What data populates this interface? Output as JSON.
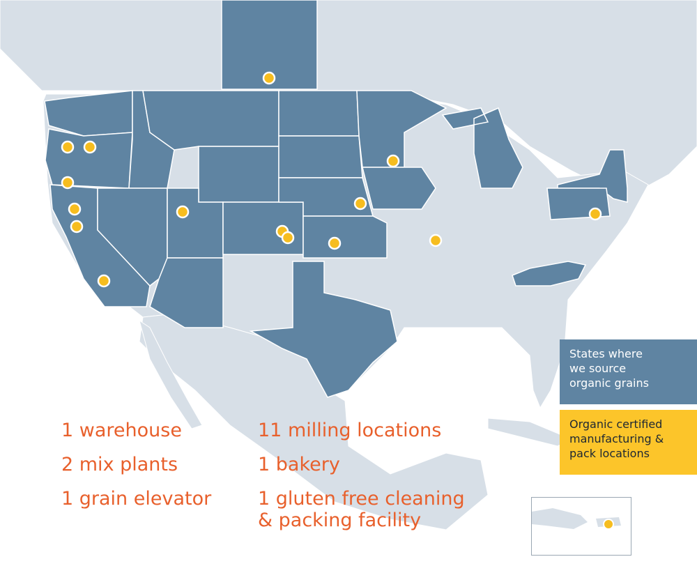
{
  "colors": {
    "land": "#d7dfe7",
    "sourced_state": "#5f84a2",
    "border": "#ffffff",
    "ocean": "#ffffff",
    "facility_marker": "#f6bd1f",
    "stat_text": "#e8602c",
    "legend_facility_bg": "#fcc52a"
  },
  "stats": {
    "warehouse": "1 warehouse",
    "mix_plants": "2 mix plants",
    "grain_elevator": "1 grain elevator",
    "milling": "11 milling locations",
    "bakery": "1 bakery",
    "gluten_free_line1": "1 gluten free cleaning",
    "gluten_free_line2": "& packing facility"
  },
  "legend": {
    "grains": {
      "line1": "States where",
      "line2": "we source",
      "line3": "organic grains"
    },
    "facilities": {
      "line1": "Organic certified",
      "line2": "manufacturing &",
      "line3": "pack locations"
    }
  },
  "sourced_regions": [
    "Washington",
    "Oregon",
    "California",
    "Idaho",
    "Nevada",
    "Montana",
    "Wyoming",
    "Utah",
    "Arizona",
    "Colorado",
    "North Dakota",
    "South Dakota",
    "Nebraska",
    "Kansas",
    "Minnesota",
    "Iowa",
    "Michigan",
    "Texas",
    "New York",
    "Pennsylvania",
    "North Carolina",
    "Saskatchewan"
  ],
  "facility_markers": [
    {
      "place": "Saskatchewan"
    },
    {
      "place": "Oregon"
    },
    {
      "place": "Oregon"
    },
    {
      "place": "Oregon"
    },
    {
      "place": "California"
    },
    {
      "place": "California"
    },
    {
      "place": "California"
    },
    {
      "place": "Utah"
    },
    {
      "place": "Colorado"
    },
    {
      "place": "Colorado"
    },
    {
      "place": "Kansas"
    },
    {
      "place": "Nebraska"
    },
    {
      "place": "Minnesota"
    },
    {
      "place": "Illinois"
    },
    {
      "place": "Pennsylvania"
    },
    {
      "place": "Puerto Rico"
    }
  ]
}
